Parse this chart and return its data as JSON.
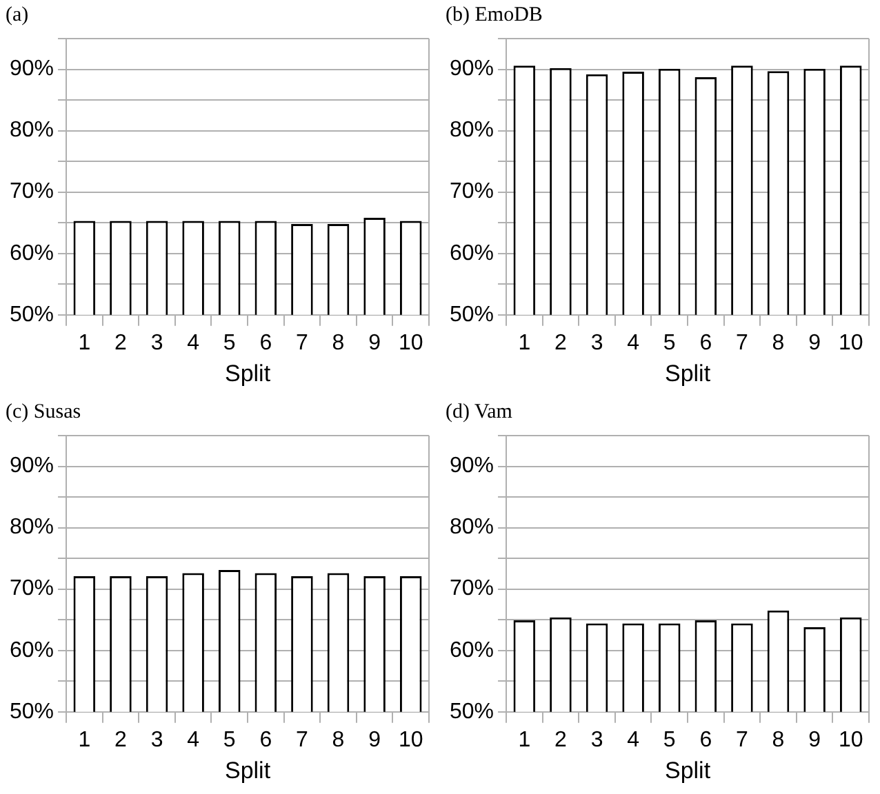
{
  "chart_data": [
    {
      "type": "bar",
      "title": "(a)",
      "xlabel": "Split",
      "categories": [
        "1",
        "2",
        "3",
        "4",
        "5",
        "6",
        "7",
        "8",
        "9",
        "10"
      ],
      "series": [
        {
          "color": "#ffffff",
          "values": [
            65.3,
            65.3,
            65.3,
            65.3,
            65.3,
            65.3,
            64.8,
            64.8,
            65.8,
            65.3
          ]
        }
      ],
      "ylim": [
        50,
        95
      ],
      "yticks": [
        {
          "value": 50,
          "label": "50%"
        },
        {
          "value": 55,
          "label": null
        },
        {
          "value": 60,
          "label": "60%"
        },
        {
          "value": 65,
          "label": null
        },
        {
          "value": 70,
          "label": "70%"
        },
        {
          "value": 75,
          "label": null
        },
        {
          "value": 80,
          "label": "80%"
        },
        {
          "value": 85,
          "label": null
        },
        {
          "value": 90,
          "label": "90%"
        },
        {
          "value": 95,
          "label": null
        }
      ],
      "grid": "y"
    },
    {
      "type": "bar",
      "title": "(b) EmoDB",
      "xlabel": "Split",
      "categories": [
        "1",
        "2",
        "3",
        "4",
        "5",
        "6",
        "7",
        "8",
        "9",
        "10"
      ],
      "series": [
        {
          "color": "#ffffff",
          "values": [
            90.6,
            90.2,
            89.2,
            89.6,
            90.1,
            88.7,
            90.6,
            89.7,
            90.1,
            90.6
          ]
        }
      ],
      "ylim": [
        50,
        95
      ],
      "yticks": [
        {
          "value": 50,
          "label": "50%"
        },
        {
          "value": 55,
          "label": null
        },
        {
          "value": 60,
          "label": "60%"
        },
        {
          "value": 65,
          "label": null
        },
        {
          "value": 70,
          "label": "70%"
        },
        {
          "value": 75,
          "label": null
        },
        {
          "value": 80,
          "label": "80%"
        },
        {
          "value": 85,
          "label": null
        },
        {
          "value": 90,
          "label": "90%"
        },
        {
          "value": 95,
          "label": null
        }
      ],
      "grid": "y"
    },
    {
      "type": "bar",
      "title": "(c) Susas",
      "xlabel": "Split",
      "categories": [
        "1",
        "2",
        "3",
        "4",
        "5",
        "6",
        "7",
        "8",
        "9",
        "10"
      ],
      "series": [
        {
          "color": "#ffffff",
          "values": [
            72.1,
            72.1,
            72.1,
            72.6,
            73.1,
            72.6,
            72.1,
            72.6,
            72.1,
            72.1
          ]
        }
      ],
      "ylim": [
        50,
        95
      ],
      "yticks": [
        {
          "value": 50,
          "label": "50%"
        },
        {
          "value": 55,
          "label": null
        },
        {
          "value": 60,
          "label": "60%"
        },
        {
          "value": 65,
          "label": null
        },
        {
          "value": 70,
          "label": "70%"
        },
        {
          "value": 75,
          "label": null
        },
        {
          "value": 80,
          "label": "80%"
        },
        {
          "value": 85,
          "label": null
        },
        {
          "value": 90,
          "label": "90%"
        },
        {
          "value": 95,
          "label": null
        }
      ],
      "grid": "y"
    },
    {
      "type": "bar",
      "title": "(d) Vam",
      "xlabel": "Split",
      "categories": [
        "1",
        "2",
        "3",
        "4",
        "5",
        "6",
        "7",
        "8",
        "9",
        "10"
      ],
      "series": [
        {
          "color": "#ffffff",
          "values": [
            64.9,
            65.4,
            64.4,
            64.4,
            64.4,
            64.9,
            64.4,
            66.5,
            63.8,
            65.4
          ]
        }
      ],
      "ylim": [
        50,
        95
      ],
      "yticks": [
        {
          "value": 50,
          "label": "50%"
        },
        {
          "value": 55,
          "label": null
        },
        {
          "value": 60,
          "label": "60%"
        },
        {
          "value": 65,
          "label": null
        },
        {
          "value": 70,
          "label": "70%"
        },
        {
          "value": 75,
          "label": null
        },
        {
          "value": 80,
          "label": "80%"
        },
        {
          "value": 85,
          "label": null
        },
        {
          "value": 90,
          "label": "90%"
        },
        {
          "value": 95,
          "label": null
        }
      ],
      "grid": "y"
    }
  ]
}
